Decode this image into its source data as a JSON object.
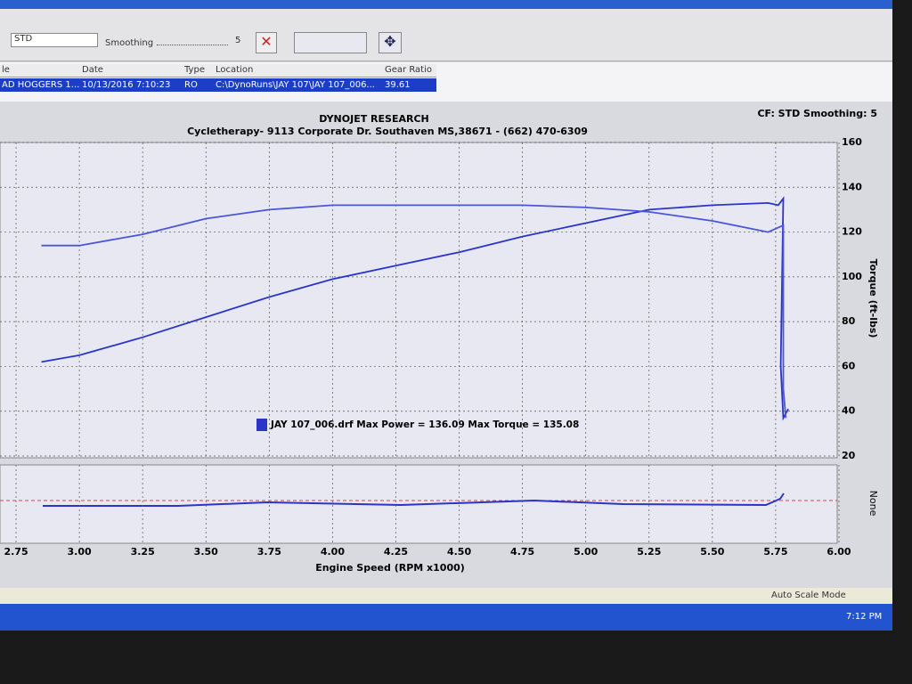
{
  "toolbar": {
    "cf": "STD",
    "smoothing_label": "Smoothing",
    "smoothing_value": "5"
  },
  "file_table": {
    "headers": [
      "le",
      "Date",
      "Type",
      "Location",
      "Gear Ratio"
    ],
    "rows": [
      [
        "AD HOGGERS 1...",
        "10/13/2016 7:10:23",
        "RO",
        "C:\\DynoRuns\\JAY 107\\JAY 107_006...",
        "39.61"
      ]
    ]
  },
  "chart_data": {
    "type": "line",
    "title": "DYNOJET RESEARCH",
    "subtitle": "Cycletherapy- 9113 Corporate Dr. Southaven MS,38671 - (662) 470-6309",
    "corner_note": "CF: STD  Smoothing: 5",
    "xlabel": "Engine Speed (RPM x1000)",
    "ylabel": "Torque (ft-lbs)",
    "lower_panel_label": "None",
    "legend_text": "JAY 107_006.drf Max Power = 136.09 Max Torque = 135.08",
    "xlim": [
      2.6866,
      6.0
    ],
    "xticks": [
      2.75,
      {
        "value": 3,
        "label": "3.00"
      },
      3.25,
      {
        "value": 3.5,
        "label": "3.50"
      },
      3.75,
      {
        "value": 4,
        "label": "4.00"
      },
      4.25,
      {
        "value": 4.5,
        "label": "4.50"
      },
      4.75,
      {
        "value": 5,
        "label": "5.00"
      },
      5.25,
      {
        "value": 5.5,
        "label": "5.50"
      },
      5.75,
      {
        "value": 6,
        "label": "6.00"
      }
    ],
    "ylim": [
      20,
      160
    ],
    "yticks": [
      20,
      40,
      60,
      80,
      100,
      120,
      140,
      160
    ],
    "grid": true,
    "series": [
      {
        "color": "#2a35c8",
        "x": [
          2.85,
          3.0,
          3.25,
          3.5,
          3.75,
          4.0,
          4.25,
          4.5,
          4.75,
          5.0,
          5.25,
          5.5,
          5.72,
          5.76,
          5.78,
          5.77,
          5.78,
          5.8
        ],
        "values": [
          62,
          65,
          73,
          82,
          91,
          99,
          105,
          111,
          118,
          124,
          130,
          132,
          133,
          132,
          135,
          60,
          37,
          41
        ]
      },
      {
        "color": "#4a55d8",
        "x": [
          2.85,
          3.0,
          3.25,
          3.5,
          3.75,
          4.0,
          4.25,
          4.5,
          4.75,
          5.0,
          5.25,
          5.5,
          5.72,
          5.78,
          5.78,
          5.79
        ],
        "values": [
          114,
          114,
          119,
          126,
          130,
          132,
          132,
          132,
          132,
          131,
          129,
          125,
          120,
          123,
          50,
          37
        ]
      }
    ]
  },
  "status": {
    "mode": "Auto Scale Mode",
    "time": "7:12 PM"
  }
}
